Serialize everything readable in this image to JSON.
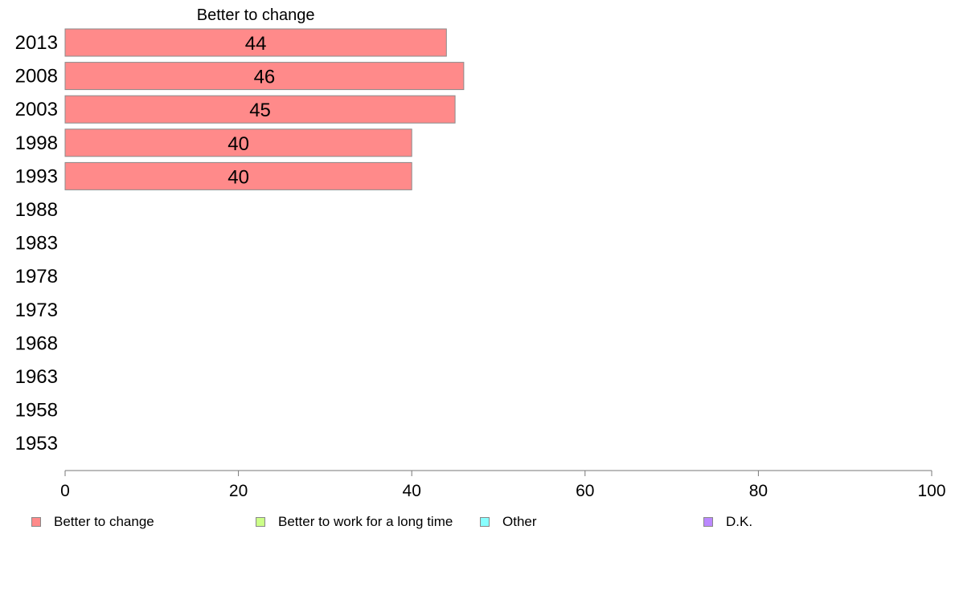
{
  "chart_data": {
    "type": "bar",
    "orientation": "horizontal",
    "title": "Better to change",
    "categories": [
      "2013",
      "2008",
      "2003",
      "1998",
      "1993",
      "1988",
      "1983",
      "1978",
      "1973",
      "1968",
      "1963",
      "1958",
      "1953"
    ],
    "series": [
      {
        "name": "Better to change",
        "color": "#ff8a8a",
        "values": [
          44,
          46,
          45,
          40,
          40,
          null,
          null,
          null,
          null,
          null,
          null,
          null,
          null
        ]
      }
    ],
    "xlim": [
      0,
      100
    ],
    "xticks": [
      0,
      20,
      40,
      60,
      80,
      100
    ],
    "grid": false,
    "legend_position": "bottom",
    "legend": [
      {
        "label": "Better to change",
        "color": "#ff8a8a"
      },
      {
        "label": "Better to work for a long time",
        "color": "#ccff88"
      },
      {
        "label": "Other",
        "color": "#88ffff"
      },
      {
        "label": "D.K.",
        "color": "#bb88ff"
      }
    ]
  }
}
